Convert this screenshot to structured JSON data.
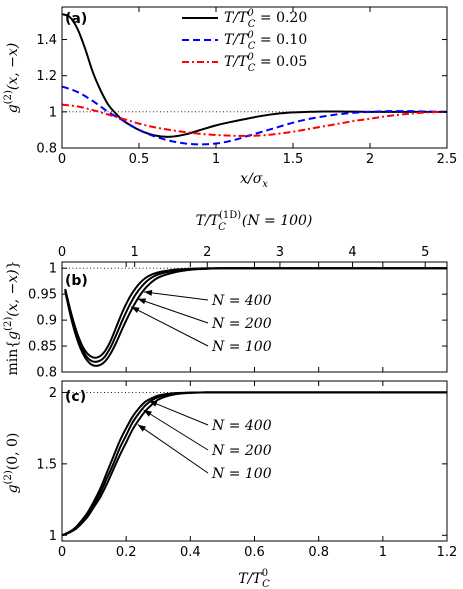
{
  "chart_data": [
    {
      "type": "line",
      "panel_label": "(a)",
      "xlabel": "x/σ_x",
      "ylabel": "g^(2)(x, −x)",
      "xlim": [
        0,
        2.5
      ],
      "ylim": [
        0.8,
        1.58
      ],
      "xticks": [
        "0",
        "0.5",
        "1",
        "1.5",
        "2",
        "2.5"
      ],
      "yticks": [
        "0.8",
        "1",
        "1.2",
        "1.4"
      ],
      "reference_line": 1,
      "legend_position": "top-center",
      "series": [
        {
          "name": "T/T_C^0 = 0.20",
          "color": "#000000",
          "style": "solid",
          "x": [
            0,
            0.05,
            0.1,
            0.15,
            0.2,
            0.25,
            0.3,
            0.35,
            0.4,
            0.5,
            0.6,
            0.7,
            0.8,
            0.9,
            1.0,
            1.1,
            1.2,
            1.3,
            1.4,
            1.5,
            1.6,
            1.7,
            1.8,
            1.9,
            2.0,
            2.1,
            2.2,
            2.3,
            2.4,
            2.5
          ],
          "y": [
            1.54,
            1.525,
            1.46,
            1.35,
            1.22,
            1.12,
            1.04,
            0.99,
            0.95,
            0.9,
            0.87,
            0.862,
            0.875,
            0.9,
            0.925,
            0.945,
            0.962,
            0.978,
            0.99,
            0.997,
            1.0,
            1.002,
            1.002,
            1.001,
            1.0,
            1.0,
            1.0,
            1.0,
            1.0,
            1.0
          ]
        },
        {
          "name": "T/T_C^0 = 0.10",
          "color": "#0000ff",
          "style": "dashed",
          "x": [
            0,
            0.1,
            0.2,
            0.3,
            0.4,
            0.5,
            0.6,
            0.7,
            0.8,
            0.9,
            1.0,
            1.1,
            1.2,
            1.3,
            1.4,
            1.5,
            1.6,
            1.7,
            1.8,
            1.9,
            2.0,
            2.1,
            2.2,
            2.3,
            2.4,
            2.5
          ],
          "y": [
            1.14,
            1.11,
            1.06,
            1.0,
            0.95,
            0.9,
            0.865,
            0.84,
            0.825,
            0.82,
            0.825,
            0.84,
            0.865,
            0.89,
            0.915,
            0.94,
            0.96,
            0.975,
            0.987,
            0.995,
            1.0,
            1.003,
            1.004,
            1.003,
            1.001,
            1.0
          ]
        },
        {
          "name": "T/T_C^0 = 0.05",
          "color": "#ff0000",
          "style": "dashdot",
          "x": [
            0,
            0.1,
            0.2,
            0.3,
            0.4,
            0.5,
            0.6,
            0.7,
            0.8,
            0.9,
            1.0,
            1.1,
            1.2,
            1.3,
            1.4,
            1.5,
            1.6,
            1.7,
            1.8,
            1.9,
            2.0,
            2.1,
            2.2,
            2.3,
            2.4,
            2.5
          ],
          "y": [
            1.04,
            1.03,
            1.01,
            0.985,
            0.96,
            0.935,
            0.915,
            0.9,
            0.888,
            0.878,
            0.872,
            0.868,
            0.867,
            0.87,
            0.878,
            0.89,
            0.905,
            0.92,
            0.935,
            0.95,
            0.962,
            0.975,
            0.985,
            0.993,
            0.998,
            1.0
          ]
        }
      ]
    },
    {
      "type": "line",
      "panel_label": "(b)",
      "top_xlabel": "T/T_C^(1D)(N = 100)",
      "top_xticks": [
        "0",
        "1",
        "2",
        "3",
        "4",
        "5"
      ],
      "top_xlim": [
        0,
        5.3
      ],
      "xlim": [
        0,
        1.2
      ],
      "ylim": [
        0.8,
        1.012
      ],
      "ylabel": "min{g^(2)(x, −x)}",
      "yticks": [
        "0.8",
        "0.85",
        "0.9",
        "0.95",
        "1"
      ],
      "reference_line": 1,
      "series": [
        {
          "name": "N = 400",
          "color": "#000000",
          "x": [
            0.01,
            0.03,
            0.05,
            0.07,
            0.09,
            0.11,
            0.13,
            0.15,
            0.17,
            0.19,
            0.21,
            0.23,
            0.25,
            0.27,
            0.3,
            0.35,
            0.4,
            0.45,
            0.5,
            0.6,
            0.8,
            1.0,
            1.2
          ],
          "y": [
            0.96,
            0.91,
            0.87,
            0.843,
            0.83,
            0.828,
            0.837,
            0.858,
            0.888,
            0.918,
            0.943,
            0.962,
            0.976,
            0.985,
            0.992,
            0.997,
            0.999,
            1.0,
            1.0,
            1.0,
            1.0,
            1.0,
            1.0
          ]
        },
        {
          "name": "N = 200",
          "color": "#000000",
          "x": [
            0.01,
            0.03,
            0.05,
            0.07,
            0.09,
            0.11,
            0.13,
            0.15,
            0.17,
            0.19,
            0.21,
            0.23,
            0.25,
            0.27,
            0.3,
            0.35,
            0.4,
            0.45,
            0.5,
            0.6,
            0.8,
            1.0,
            1.2
          ],
          "y": [
            0.958,
            0.905,
            0.865,
            0.836,
            0.822,
            0.82,
            0.827,
            0.846,
            0.873,
            0.902,
            0.928,
            0.95,
            0.966,
            0.978,
            0.988,
            0.995,
            0.998,
            0.999,
            1.0,
            1.0,
            1.0,
            1.0,
            1.0
          ]
        },
        {
          "name": "N = 100",
          "color": "#000000",
          "x": [
            0.01,
            0.03,
            0.05,
            0.07,
            0.09,
            0.11,
            0.13,
            0.15,
            0.17,
            0.19,
            0.21,
            0.23,
            0.25,
            0.27,
            0.3,
            0.35,
            0.4,
            0.45,
            0.5,
            0.6,
            0.8,
            1.0,
            1.2
          ],
          "y": [
            0.955,
            0.9,
            0.858,
            0.83,
            0.815,
            0.812,
            0.818,
            0.834,
            0.858,
            0.886,
            0.912,
            0.935,
            0.954,
            0.968,
            0.982,
            0.992,
            0.997,
            0.999,
            1.0,
            1.0,
            1.0,
            1.0,
            1.0
          ]
        }
      ]
    },
    {
      "type": "line",
      "panel_label": "(c)",
      "xlabel": "T/T_C^0",
      "ylabel": "g^(2)(0, 0)",
      "xlim": [
        0,
        1.2
      ],
      "ylim": [
        0.96,
        2.08
      ],
      "xticks": [
        "0",
        "0.2",
        "0.4",
        "0.6",
        "0.8",
        "1",
        "1.2"
      ],
      "yticks": [
        "1",
        "1.5",
        "2"
      ],
      "reference_line": 2,
      "series": [
        {
          "name": "N = 400",
          "color": "#000000",
          "x": [
            0,
            0.02,
            0.04,
            0.06,
            0.08,
            0.1,
            0.12,
            0.14,
            0.16,
            0.18,
            0.2,
            0.22,
            0.24,
            0.26,
            0.28,
            0.3,
            0.33,
            0.36,
            0.4,
            0.45,
            0.5,
            0.6,
            0.8,
            1.0,
            1.2
          ],
          "y": [
            1.0,
            1.02,
            1.05,
            1.1,
            1.16,
            1.24,
            1.33,
            1.44,
            1.55,
            1.66,
            1.75,
            1.83,
            1.89,
            1.935,
            1.96,
            1.978,
            1.99,
            1.996,
            1.999,
            2.0,
            2.0,
            2.0,
            2.0,
            2.0,
            2.0
          ]
        },
        {
          "name": "N = 200",
          "color": "#000000",
          "x": [
            0,
            0.02,
            0.04,
            0.06,
            0.08,
            0.1,
            0.12,
            0.14,
            0.16,
            0.18,
            0.2,
            0.22,
            0.24,
            0.26,
            0.28,
            0.3,
            0.33,
            0.36,
            0.4,
            0.45,
            0.5,
            0.6,
            0.8,
            1.0,
            1.2
          ],
          "y": [
            1.0,
            1.018,
            1.045,
            1.09,
            1.15,
            1.22,
            1.3,
            1.4,
            1.5,
            1.61,
            1.7,
            1.79,
            1.855,
            1.91,
            1.945,
            1.968,
            1.986,
            1.994,
            1.998,
            2.0,
            2.0,
            2.0,
            2.0,
            2.0,
            2.0
          ]
        },
        {
          "name": "N = 100",
          "color": "#000000",
          "x": [
            0,
            0.02,
            0.04,
            0.06,
            0.08,
            0.1,
            0.12,
            0.14,
            0.16,
            0.18,
            0.2,
            0.22,
            0.24,
            0.26,
            0.28,
            0.3,
            0.33,
            0.36,
            0.4,
            0.45,
            0.5,
            0.6,
            0.8,
            1.0,
            1.2
          ],
          "y": [
            1.0,
            1.016,
            1.04,
            1.08,
            1.13,
            1.2,
            1.27,
            1.36,
            1.46,
            1.56,
            1.65,
            1.74,
            1.81,
            1.87,
            1.915,
            1.95,
            1.976,
            1.99,
            1.997,
            2.0,
            2.0,
            2.0,
            2.0,
            2.0,
            2.0
          ]
        }
      ]
    }
  ]
}
